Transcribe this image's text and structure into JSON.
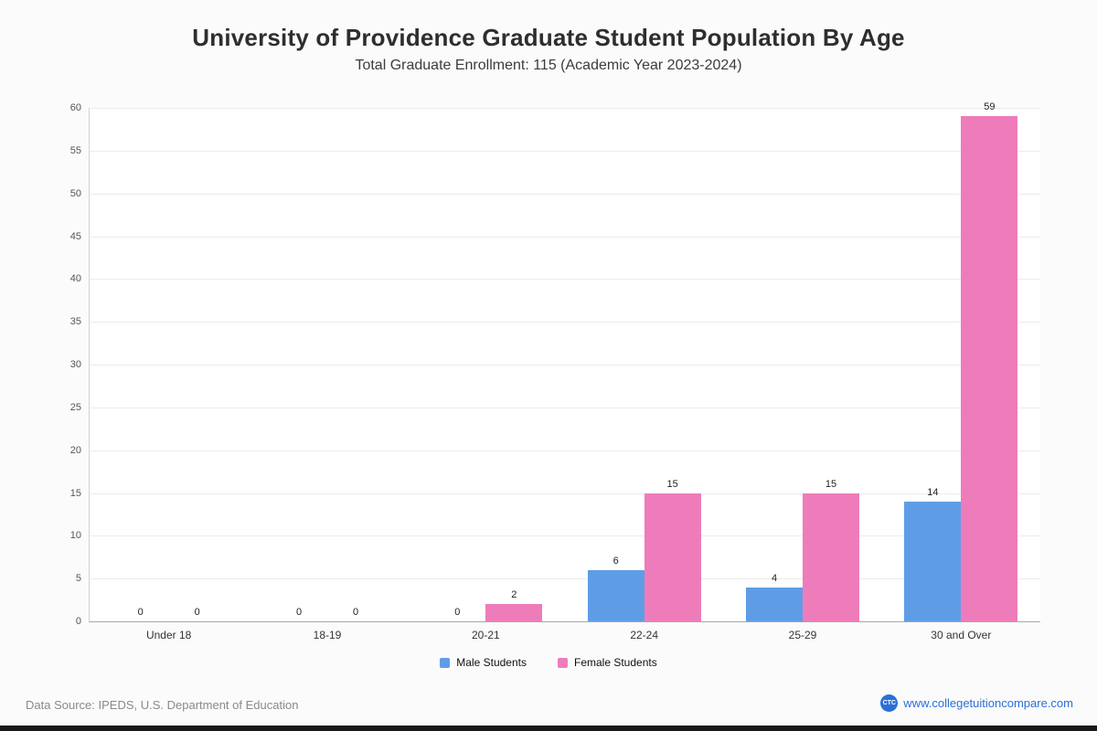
{
  "page": {
    "title": "University of Providence Graduate Student Population By Age",
    "subtitle": "Total Graduate Enrollment: 115 (Academic Year 2023-2024)",
    "footer": {
      "source": "Data Source: IPEDS, U.S. Department of Education",
      "site": "www.collegetuitioncompare.com",
      "logo": "CTC"
    }
  },
  "chart_data": {
    "type": "bar",
    "title": "University of Providence Graduate Student Population By Age",
    "subtitle": "Total Graduate Enrollment: 115 (Academic Year 2023-2024)",
    "categories": [
      "Under 18",
      "18-19",
      "20-21",
      "22-24",
      "25-29",
      "30 and Over"
    ],
    "series": [
      {
        "name": "Male Students",
        "color": "#5e9de6",
        "values": [
          0,
          0,
          0,
          6,
          4,
          14
        ]
      },
      {
        "name": "Female Students",
        "color": "#ef7cba",
        "values": [
          0,
          0,
          2,
          15,
          15,
          59
        ]
      }
    ],
    "ylim": [
      0,
      60
    ],
    "ytick_step": 5,
    "grid": true,
    "legend_position": "bottom",
    "xlabel": "",
    "ylabel": ""
  }
}
